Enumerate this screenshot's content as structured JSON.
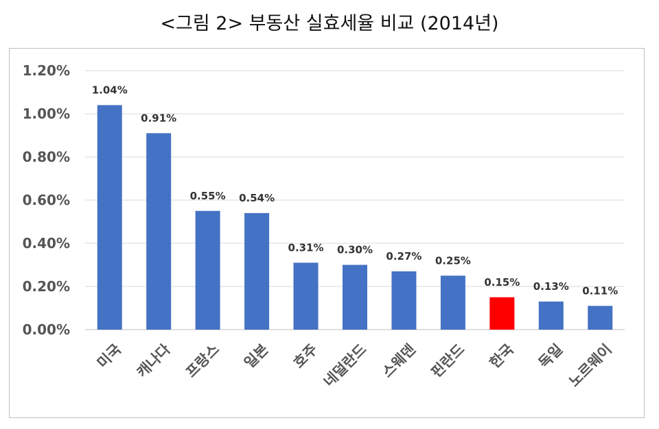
{
  "chart_data": {
    "type": "bar",
    "title": "<그림 2> 부동산 실효세율 비교 (2014년)",
    "categories": [
      "미국",
      "캐나다",
      "프랑스",
      "일본",
      "호주",
      "네덜란드",
      "스웨덴",
      "핀란드",
      "한국",
      "독일",
      "노르웨이"
    ],
    "values": [
      1.04,
      0.91,
      0.55,
      0.54,
      0.31,
      0.3,
      0.27,
      0.25,
      0.15,
      0.13,
      0.11
    ],
    "data_labels": [
      "1.04%",
      "0.91%",
      "0.55%",
      "0.54%",
      "0.31%",
      "0.30%",
      "0.27%",
      "0.25%",
      "0.15%",
      "0.13%",
      "0.11%"
    ],
    "y_ticks": [
      "0.00%",
      "0.20%",
      "0.40%",
      "0.60%",
      "0.80%",
      "1.00%",
      "1.20%"
    ],
    "ylim": [
      0,
      1.2
    ],
    "unit": "%",
    "xlabel": "",
    "ylabel": "",
    "grid": true,
    "legend": "none",
    "colors": {
      "bar": "#4472c4",
      "highlight": "#ff0000",
      "grid": "#d9d9d9",
      "axis_text": "#555555",
      "label_text": "#333333"
    },
    "highlight_category": "한국"
  }
}
